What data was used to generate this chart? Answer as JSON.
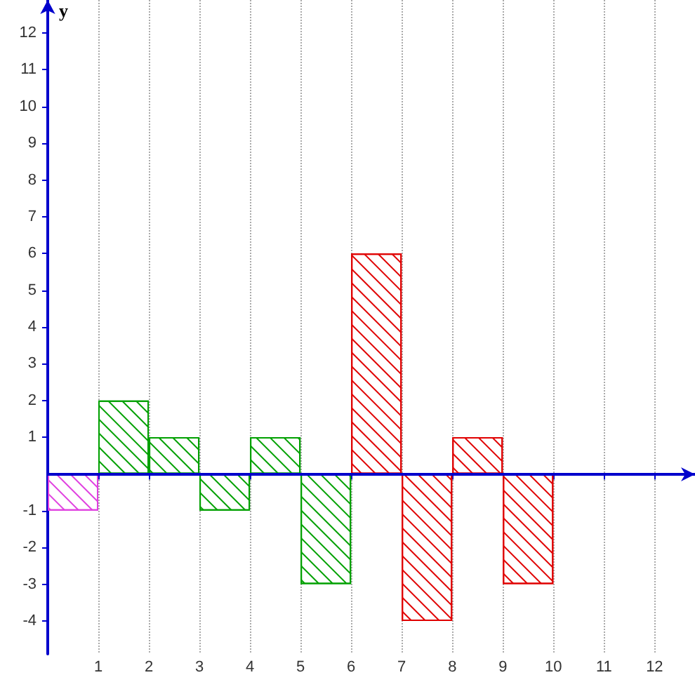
{
  "chart_data": {
    "type": "bar",
    "ylabel": "y",
    "x": [
      0.5,
      1.5,
      2.5,
      3.5,
      4.5,
      5.5,
      6.5,
      7.5,
      8.5,
      9.5
    ],
    "values": [
      -1,
      2,
      1,
      -1,
      1,
      -3,
      6,
      -4,
      1,
      -3
    ],
    "colors": [
      "#e040e0",
      "#00a000",
      "#00a000",
      "#00a000",
      "#00a000",
      "#00a000",
      "#e00000",
      "#e00000",
      "#e00000",
      "#e00000"
    ],
    "xlim": [
      0,
      12.8
    ],
    "ylim": [
      -4.9,
      12.9
    ],
    "xticks": [
      1,
      2,
      3,
      4,
      5,
      6,
      7,
      8,
      9,
      10,
      11,
      12
    ],
    "yticks": [
      -4,
      -3,
      -2,
      -1,
      1,
      2,
      3,
      4,
      5,
      6,
      7,
      8,
      9,
      10,
      11,
      12
    ],
    "grid": "x",
    "ref_lines": [
      {
        "axis": "y",
        "value": 0,
        "color": "#0000cc"
      }
    ]
  }
}
